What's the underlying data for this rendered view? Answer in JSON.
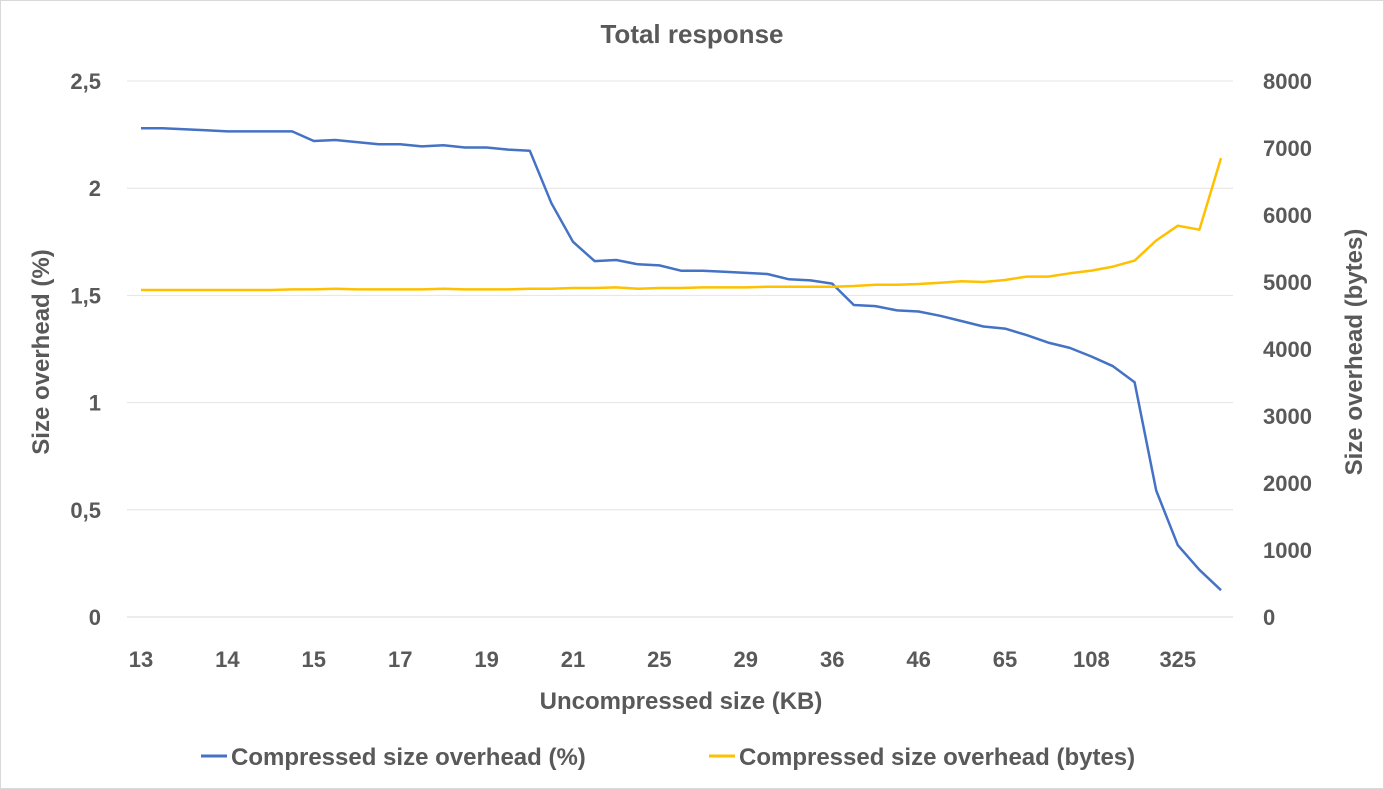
{
  "chart_data": {
    "type": "line",
    "title": "Total response",
    "xlabel": "Uncompressed size (KB)",
    "ylabel_left": "Size overhead (%)",
    "ylabel_right": "Size overhead (bytes)",
    "x_tick_labels": [
      "13",
      "14",
      "15",
      "17",
      "19",
      "21",
      "25",
      "29",
      "36",
      "46",
      "65",
      "108",
      "325"
    ],
    "y_left": {
      "min": 0,
      "max": 2.5,
      "ticks": [
        "0",
        "0,5",
        "1",
        "1,5",
        "2",
        "2,5"
      ]
    },
    "y_right": {
      "min": 0,
      "max": 8000,
      "ticks": [
        "0",
        "1000",
        "2000",
        "3000",
        "4000",
        "5000",
        "6000",
        "7000",
        "8000"
      ]
    },
    "grid": true,
    "legend_position": "bottom",
    "series": [
      {
        "name": "Compressed size overhead (%)",
        "color": "#4472C4",
        "axis": "left",
        "values": [
          2.28,
          2.28,
          2.275,
          2.27,
          2.265,
          2.265,
          2.265,
          2.265,
          2.22,
          2.225,
          2.215,
          2.205,
          2.205,
          2.195,
          2.2,
          2.19,
          2.19,
          2.18,
          2.175,
          1.93,
          1.75,
          1.66,
          1.665,
          1.645,
          1.64,
          1.615,
          1.615,
          1.61,
          1.605,
          1.6,
          1.575,
          1.57,
          1.555,
          1.455,
          1.45,
          1.43,
          1.425,
          1.405,
          1.38,
          1.355,
          1.345,
          1.315,
          1.28,
          1.255,
          1.215,
          1.17,
          1.095,
          0.59,
          0.335,
          0.22,
          0.125
        ]
      },
      {
        "name": "Compressed size overhead (bytes)",
        "color": "#FFC000",
        "axis": "right",
        "values": [
          4880,
          4880,
          4880,
          4880,
          4880,
          4880,
          4880,
          4890,
          4890,
          4900,
          4890,
          4890,
          4890,
          4890,
          4900,
          4890,
          4890,
          4890,
          4900,
          4900,
          4910,
          4910,
          4920,
          4900,
          4910,
          4910,
          4920,
          4920,
          4920,
          4930,
          4930,
          4930,
          4930,
          4940,
          4960,
          4960,
          4970,
          4990,
          5010,
          5000,
          5030,
          5080,
          5080,
          5130,
          5170,
          5230,
          5320,
          5620,
          5840,
          5780,
          6850
        ]
      }
    ]
  }
}
